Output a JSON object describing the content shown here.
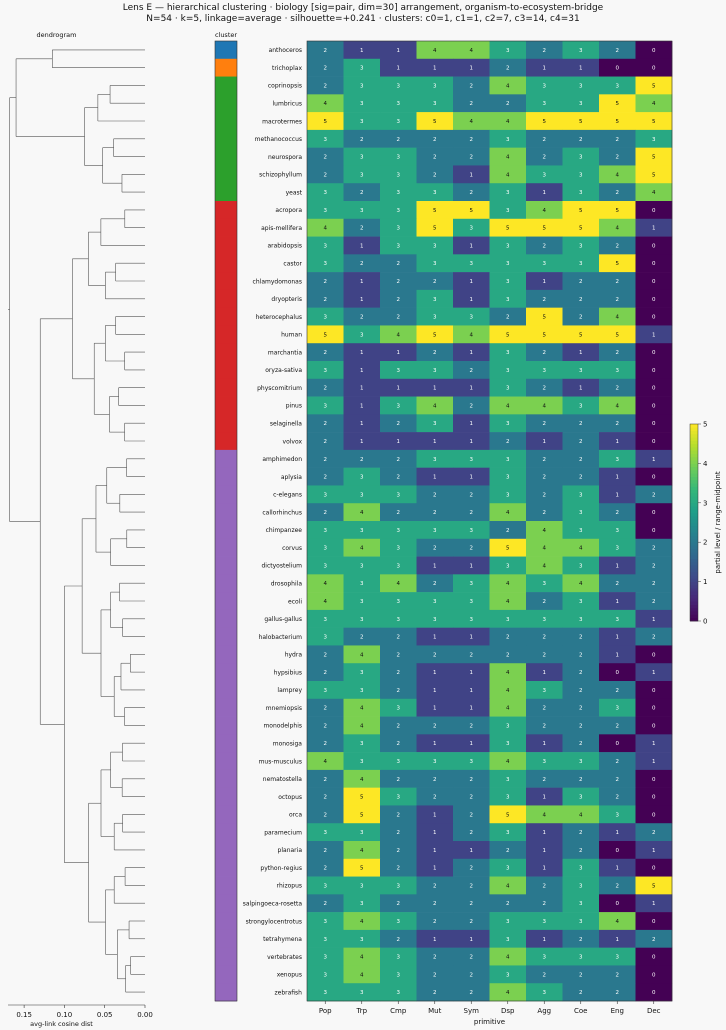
{
  "chart_data": {
    "type": "heatmap",
    "title": "Lens E — hierarchical clustering · biology [sig=pair, dim=30] arrangement, organism-to-ecosystem-bridge",
    "subtitle": "N=54 · k=5, linkage=average · silhouette=+0.241 · clusters: c0=1, c1=1, c2=7, c3=14, c4=31",
    "dendrogram": {
      "title": "dendrogram",
      "xlabel": "avg-link cosine dist",
      "xticks": [
        "0.15",
        "0.10",
        "0.05",
        "0.00"
      ],
      "xlim": [
        0.0,
        0.17
      ]
    },
    "cluster_column_label": "cluster",
    "xlabel": "primitive",
    "colorbar": {
      "label": "partial level / range-midpoint",
      "ticks": [
        "0",
        "1",
        "2",
        "3",
        "4",
        "5"
      ],
      "range": [
        0,
        5
      ],
      "colormap": "viridis"
    },
    "columns": [
      "Pop",
      "Trp",
      "Cmp",
      "Mut",
      "Sym",
      "Dsp",
      "Agg",
      "Coe",
      "Eng",
      "Dec"
    ],
    "cluster_colors": [
      "#1f77b4",
      "#ff7f0e",
      "#2ca02c",
      "#d62728",
      "#9467bd"
    ],
    "rows": [
      {
        "label": "anthoceros",
        "cluster": 0,
        "values": [
          2,
          1,
          1,
          4,
          4,
          3,
          2,
          3,
          2,
          0
        ]
      },
      {
        "label": "trichoplax",
        "cluster": 1,
        "values": [
          2,
          3,
          1,
          1,
          1,
          2,
          1,
          1,
          0,
          0
        ]
      },
      {
        "label": "coprinopsis",
        "cluster": 2,
        "values": [
          2,
          3,
          3,
          3,
          2,
          4,
          3,
          3,
          3,
          5
        ]
      },
      {
        "label": "lumbricus",
        "cluster": 2,
        "values": [
          4,
          3,
          3,
          3,
          2,
          2,
          3,
          3,
          5,
          4
        ]
      },
      {
        "label": "macrotermes",
        "cluster": 2,
        "values": [
          5,
          3,
          3,
          5,
          4,
          4,
          5,
          5,
          5,
          5
        ]
      },
      {
        "label": "methanococcus",
        "cluster": 2,
        "values": [
          3,
          2,
          2,
          2,
          2,
          3,
          2,
          2,
          2,
          3
        ]
      },
      {
        "label": "neurospora",
        "cluster": 2,
        "values": [
          2,
          3,
          3,
          2,
          2,
          4,
          2,
          3,
          2,
          5
        ]
      },
      {
        "label": "schizophyllum",
        "cluster": 2,
        "values": [
          2,
          3,
          3,
          2,
          1,
          4,
          3,
          3,
          4,
          5
        ]
      },
      {
        "label": "yeast",
        "cluster": 2,
        "values": [
          3,
          2,
          3,
          3,
          2,
          3,
          1,
          3,
          2,
          4
        ]
      },
      {
        "label": "acropora",
        "cluster": 3,
        "values": [
          3,
          3,
          3,
          5,
          5,
          3,
          4,
          5,
          5,
          0
        ]
      },
      {
        "label": "apis-mellifera",
        "cluster": 3,
        "values": [
          4,
          2,
          3,
          5,
          3,
          5,
          5,
          5,
          4,
          1
        ]
      },
      {
        "label": "arabidopsis",
        "cluster": 3,
        "values": [
          3,
          1,
          3,
          3,
          1,
          3,
          2,
          3,
          2,
          0
        ]
      },
      {
        "label": "castor",
        "cluster": 3,
        "values": [
          3,
          2,
          2,
          3,
          3,
          3,
          3,
          3,
          5,
          0
        ]
      },
      {
        "label": "chlamydomonas",
        "cluster": 3,
        "values": [
          2,
          1,
          2,
          2,
          1,
          3,
          1,
          2,
          2,
          0
        ]
      },
      {
        "label": "dryopteris",
        "cluster": 3,
        "values": [
          2,
          1,
          2,
          3,
          1,
          3,
          2,
          2,
          2,
          0
        ]
      },
      {
        "label": "heterocephalus",
        "cluster": 3,
        "values": [
          3,
          2,
          2,
          3,
          3,
          2,
          5,
          2,
          4,
          0
        ]
      },
      {
        "label": "human",
        "cluster": 3,
        "values": [
          5,
          3,
          4,
          5,
          4,
          5,
          5,
          5,
          5,
          1
        ]
      },
      {
        "label": "marchantia",
        "cluster": 3,
        "values": [
          2,
          1,
          1,
          2,
          1,
          3,
          2,
          1,
          2,
          0
        ]
      },
      {
        "label": "oryza-sativa",
        "cluster": 3,
        "values": [
          3,
          1,
          3,
          3,
          2,
          3,
          3,
          3,
          3,
          0
        ]
      },
      {
        "label": "physcomitrium",
        "cluster": 3,
        "values": [
          2,
          1,
          1,
          1,
          1,
          3,
          2,
          1,
          2,
          0
        ]
      },
      {
        "label": "pinus",
        "cluster": 3,
        "values": [
          3,
          1,
          3,
          4,
          2,
          4,
          4,
          3,
          4,
          0
        ]
      },
      {
        "label": "selaginella",
        "cluster": 3,
        "values": [
          2,
          1,
          2,
          3,
          1,
          3,
          2,
          2,
          2,
          0
        ]
      },
      {
        "label": "volvox",
        "cluster": 3,
        "values": [
          2,
          1,
          1,
          1,
          1,
          2,
          1,
          2,
          1,
          0
        ]
      },
      {
        "label": "amphimedon",
        "cluster": 4,
        "values": [
          2,
          2,
          2,
          3,
          3,
          3,
          2,
          2,
          3,
          1
        ]
      },
      {
        "label": "aplysia",
        "cluster": 4,
        "values": [
          2,
          3,
          2,
          1,
          1,
          3,
          2,
          2,
          1,
          0
        ]
      },
      {
        "label": "c-elegans",
        "cluster": 4,
        "values": [
          3,
          3,
          3,
          2,
          2,
          3,
          2,
          3,
          1,
          2
        ]
      },
      {
        "label": "callorhinchus",
        "cluster": 4,
        "values": [
          2,
          4,
          2,
          2,
          2,
          4,
          2,
          3,
          2,
          0
        ]
      },
      {
        "label": "chimpanzee",
        "cluster": 4,
        "values": [
          3,
          3,
          3,
          3,
          3,
          2,
          4,
          3,
          3,
          0
        ]
      },
      {
        "label": "corvus",
        "cluster": 4,
        "values": [
          3,
          4,
          3,
          2,
          2,
          5,
          4,
          4,
          3,
          2
        ]
      },
      {
        "label": "dictyostelium",
        "cluster": 4,
        "values": [
          3,
          3,
          3,
          1,
          1,
          3,
          4,
          3,
          1,
          2
        ]
      },
      {
        "label": "drosophila",
        "cluster": 4,
        "values": [
          4,
          3,
          4,
          2,
          3,
          4,
          3,
          4,
          2,
          2
        ]
      },
      {
        "label": "ecoli",
        "cluster": 4,
        "values": [
          4,
          3,
          3,
          3,
          3,
          4,
          2,
          3,
          1,
          2
        ]
      },
      {
        "label": "gallus-gallus",
        "cluster": 4,
        "values": [
          3,
          3,
          3,
          3,
          3,
          3,
          3,
          3,
          3,
          1
        ]
      },
      {
        "label": "halobacterium",
        "cluster": 4,
        "values": [
          3,
          2,
          2,
          1,
          1,
          2,
          2,
          2,
          1,
          2
        ]
      },
      {
        "label": "hydra",
        "cluster": 4,
        "values": [
          2,
          4,
          2,
          2,
          2,
          2,
          2,
          2,
          1,
          0
        ]
      },
      {
        "label": "hypsibius",
        "cluster": 4,
        "values": [
          2,
          3,
          2,
          1,
          1,
          4,
          1,
          2,
          0,
          1
        ]
      },
      {
        "label": "lamprey",
        "cluster": 4,
        "values": [
          3,
          3,
          2,
          1,
          1,
          4,
          3,
          2,
          2,
          0
        ]
      },
      {
        "label": "mnemiopsis",
        "cluster": 4,
        "values": [
          2,
          4,
          3,
          1,
          1,
          4,
          2,
          2,
          3,
          0
        ]
      },
      {
        "label": "monodelphis",
        "cluster": 4,
        "values": [
          2,
          4,
          2,
          2,
          2,
          3,
          2,
          2,
          2,
          0
        ]
      },
      {
        "label": "monosiga",
        "cluster": 4,
        "values": [
          2,
          3,
          2,
          1,
          1,
          3,
          1,
          2,
          0,
          1
        ]
      },
      {
        "label": "mus-musculus",
        "cluster": 4,
        "values": [
          4,
          3,
          3,
          3,
          3,
          4,
          3,
          3,
          2,
          1
        ]
      },
      {
        "label": "nematostella",
        "cluster": 4,
        "values": [
          2,
          4,
          2,
          2,
          2,
          3,
          2,
          2,
          2,
          0
        ]
      },
      {
        "label": "octopus",
        "cluster": 4,
        "values": [
          2,
          5,
          3,
          2,
          2,
          3,
          1,
          3,
          2,
          0
        ]
      },
      {
        "label": "orca",
        "cluster": 4,
        "values": [
          2,
          5,
          2,
          1,
          2,
          5,
          4,
          4,
          3,
          0
        ]
      },
      {
        "label": "paramecium",
        "cluster": 4,
        "values": [
          3,
          3,
          2,
          1,
          2,
          3,
          1,
          2,
          1,
          2
        ]
      },
      {
        "label": "planaria",
        "cluster": 4,
        "values": [
          2,
          4,
          2,
          1,
          1,
          2,
          1,
          2,
          0,
          1
        ]
      },
      {
        "label": "python-regius",
        "cluster": 4,
        "values": [
          2,
          5,
          2,
          1,
          2,
          3,
          1,
          3,
          1,
          0
        ]
      },
      {
        "label": "rhizopus",
        "cluster": 4,
        "values": [
          3,
          3,
          3,
          2,
          2,
          4,
          2,
          3,
          2,
          5
        ]
      },
      {
        "label": "salpingoeca-rosetta",
        "cluster": 4,
        "values": [
          2,
          3,
          2,
          2,
          2,
          2,
          2,
          3,
          0,
          1
        ]
      },
      {
        "label": "strongylocentrotus",
        "cluster": 4,
        "values": [
          3,
          4,
          3,
          2,
          2,
          3,
          3,
          3,
          4,
          0
        ]
      },
      {
        "label": "tetrahymena",
        "cluster": 4,
        "values": [
          3,
          3,
          2,
          1,
          1,
          3,
          1,
          2,
          1,
          2
        ]
      },
      {
        "label": "vertebrates",
        "cluster": 4,
        "values": [
          3,
          4,
          3,
          2,
          2,
          4,
          3,
          3,
          3,
          0
        ]
      },
      {
        "label": "xenopus",
        "cluster": 4,
        "values": [
          3,
          4,
          3,
          2,
          2,
          3,
          2,
          2,
          2,
          0
        ]
      },
      {
        "label": "zebrafish",
        "cluster": 4,
        "values": [
          3,
          3,
          3,
          2,
          2,
          4,
          3,
          2,
          2,
          0
        ]
      }
    ]
  }
}
